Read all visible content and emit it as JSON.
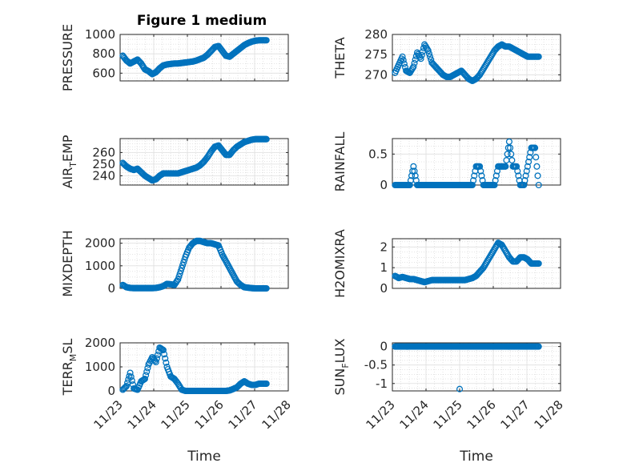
{
  "title": "Figure 1 medium",
  "colors": {
    "marker": "#0072BD",
    "axis": "#262626",
    "grid": "#dfdfdf"
  },
  "chart_data": [
    {
      "type": "scatter",
      "marker": "circle-open",
      "grid": true,
      "ylabel": "PRESSURE",
      "ylim": [
        520,
        1000
      ],
      "yticks": [
        600,
        800,
        1000
      ],
      "yticklabels": [
        "600",
        "800",
        "1000"
      ],
      "xlim": [
        0,
        5
      ],
      "xticks": [
        0,
        1,
        2,
        3,
        4,
        5
      ],
      "xticklabels": [
        "",
        "",
        "",
        "",
        "",
        ""
      ],
      "x_start": 0.08,
      "x_end": 4.35,
      "values": [
        780,
        730,
        700,
        720,
        740,
        700,
        640,
        620,
        590,
        610,
        650,
        680,
        690,
        695,
        700,
        700,
        705,
        710,
        715,
        720,
        730,
        745,
        760,
        790,
        830,
        870,
        880,
        830,
        780,
        770,
        800,
        830,
        860,
        890,
        910,
        925,
        935,
        940,
        940,
        940
      ]
    },
    {
      "type": "scatter",
      "marker": "circle-open",
      "grid": true,
      "ylabel": "THETA",
      "ylim": [
        268.5,
        280
      ],
      "yticks": [
        270,
        275,
        280
      ],
      "yticklabels": [
        "270",
        "275",
        "280"
      ],
      "xlim": [
        0,
        5
      ],
      "xticks": [
        0,
        1,
        2,
        3,
        4,
        5
      ],
      "xticklabels": [
        "",
        "",
        "",
        "",
        "",
        ""
      ],
      "x_start": 0.08,
      "x_end": 4.35,
      "values": [
        270.5,
        272.5,
        274.5,
        271,
        270.5,
        272,
        275.5,
        274,
        277.5,
        276,
        273,
        272,
        271,
        270,
        269.5,
        269.5,
        270,
        270.5,
        271,
        270,
        269,
        268.5,
        269,
        270,
        271.5,
        273,
        274.5,
        276,
        277,
        277.5,
        277,
        277,
        276.5,
        276,
        275.5,
        275,
        274.5,
        274.5,
        274.5,
        274.5
      ]
    },
    {
      "type": "scatter",
      "marker": "circle-open",
      "grid": true,
      "ylabel": "AIR_TEMP",
      "ylim": [
        232,
        272
      ],
      "yticks": [
        240,
        250,
        260
      ],
      "yticklabels": [
        "240",
        "250",
        "260"
      ],
      "xlim": [
        0,
        5
      ],
      "xticks": [
        0,
        1,
        2,
        3,
        4,
        5
      ],
      "xticklabels": [
        "",
        "",
        "",
        "",
        "",
        ""
      ],
      "x_start": 0.08,
      "x_end": 4.35,
      "values": [
        251,
        248,
        246,
        245,
        246,
        243,
        240,
        238,
        236,
        237,
        240,
        242,
        242,
        242,
        242,
        242,
        243,
        244,
        245,
        246,
        247,
        249,
        252,
        256,
        261,
        265,
        266,
        262,
        258,
        258,
        262,
        265,
        267,
        269,
        270,
        271,
        271.5,
        271.5,
        271.5,
        271.5
      ]
    },
    {
      "type": "scatter",
      "marker": "circle-open",
      "grid": true,
      "ylabel": "RAINFALL",
      "ylim": [
        0,
        0.75
      ],
      "yticks": [
        0,
        0.5
      ],
      "yticklabels": [
        "0",
        "0.5"
      ],
      "xlim": [
        0,
        5
      ],
      "xticks": [
        0,
        1,
        2,
        3,
        4,
        5
      ],
      "xticklabels": [
        "",
        "",
        "",
        "",
        "",
        ""
      ],
      "x_start": 0.08,
      "x_end": 4.35,
      "values": [
        0,
        0,
        0,
        0,
        0,
        0.3,
        0,
        0,
        0,
        0,
        0,
        0,
        0,
        0,
        0,
        0,
        0,
        0,
        0,
        0,
        0,
        0,
        0.3,
        0.3,
        0,
        0,
        0,
        0,
        0.3,
        0.3,
        0.3,
        0.7,
        0.3,
        0.3,
        0,
        0,
        0.3,
        0.6,
        0.6,
        0
      ]
    },
    {
      "type": "scatter",
      "marker": "circle-open",
      "grid": true,
      "ylabel": "MIXDEPTH",
      "ylim": [
        0,
        2200
      ],
      "yticks": [
        0,
        1000,
        2000
      ],
      "yticklabels": [
        "0",
        "1000",
        "2000"
      ],
      "xlim": [
        0,
        5
      ],
      "xticks": [
        0,
        1,
        2,
        3,
        4,
        5
      ],
      "xticklabels": [
        "",
        "",
        "",
        "",
        "",
        ""
      ],
      "x_start": 0.08,
      "x_end": 4.35,
      "values": [
        150,
        50,
        20,
        10,
        10,
        10,
        10,
        10,
        10,
        20,
        50,
        100,
        200,
        180,
        150,
        400,
        900,
        1400,
        1800,
        2000,
        2100,
        2100,
        2050,
        2000,
        2000,
        1950,
        1900,
        1500,
        1200,
        900,
        600,
        300,
        150,
        50,
        30,
        10,
        0,
        0,
        0,
        0
      ]
    },
    {
      "type": "scatter",
      "marker": "circle-open",
      "grid": true,
      "ylabel": "H2OMIXRA",
      "ylim": [
        0,
        2.4
      ],
      "yticks": [
        0,
        1,
        2
      ],
      "yticklabels": [
        "0",
        "1",
        "2"
      ],
      "xlim": [
        0,
        5
      ],
      "xticks": [
        0,
        1,
        2,
        3,
        4,
        5
      ],
      "xticklabels": [
        "",
        "",
        "",
        "",
        "",
        ""
      ],
      "x_start": 0.08,
      "x_end": 4.35,
      "values": [
        0.6,
        0.5,
        0.55,
        0.5,
        0.45,
        0.45,
        0.4,
        0.35,
        0.3,
        0.35,
        0.4,
        0.4,
        0.4,
        0.4,
        0.4,
        0.4,
        0.4,
        0.4,
        0.4,
        0.4,
        0.45,
        0.5,
        0.6,
        0.8,
        1.0,
        1.3,
        1.6,
        1.9,
        2.2,
        2.1,
        1.8,
        1.5,
        1.3,
        1.3,
        1.5,
        1.5,
        1.4,
        1.2,
        1.2,
        1.2
      ]
    },
    {
      "type": "scatter",
      "marker": "circle-open",
      "grid": true,
      "ylabel": "TERR_MSL",
      "ylim": [
        0,
        2000
      ],
      "yticks": [
        0,
        1000,
        2000
      ],
      "yticklabels": [
        "0",
        "1000",
        "2000"
      ],
      "xlim": [
        0,
        5
      ],
      "xticks": [
        0,
        1,
        2,
        3,
        4,
        5
      ],
      "xticklabels": [
        "11/23",
        "11/24",
        "11/25",
        "11/26",
        "11/27",
        "11/28"
      ],
      "xlabel": "Time",
      "x_start": 0.08,
      "x_end": 4.35,
      "values": [
        50,
        200,
        750,
        100,
        50,
        400,
        500,
        1100,
        1400,
        1200,
        1800,
        1700,
        1000,
        600,
        500,
        300,
        50,
        0,
        0,
        0,
        0,
        0,
        0,
        0,
        0,
        0,
        0,
        0,
        0,
        20,
        80,
        150,
        300,
        400,
        300,
        250,
        250,
        300,
        300,
        300
      ]
    },
    {
      "type": "scatter",
      "marker": "circle-open",
      "grid": true,
      "ylabel": "SUN_FLUX",
      "ylim": [
        -1.2,
        0.1
      ],
      "yticks": [
        -1,
        -0.5,
        0
      ],
      "yticklabels": [
        "-1",
        "-0.5",
        "0"
      ],
      "xlim": [
        0,
        5
      ],
      "xticks": [
        0,
        1,
        2,
        3,
        4,
        5
      ],
      "xticklabels": [
        "11/23",
        "11/24",
        "11/25",
        "11/26",
        "11/27",
        "11/28"
      ],
      "xlabel": "Time",
      "x_start": 0.08,
      "x_end": 4.35,
      "values": [
        0,
        0,
        0,
        0,
        0,
        0,
        0,
        0,
        0,
        0,
        0,
        0,
        0,
        0,
        0,
        0,
        0,
        0,
        0,
        0,
        0,
        0,
        0,
        0,
        0,
        0,
        0,
        0,
        0,
        0,
        0,
        0,
        0,
        0,
        0,
        0,
        0,
        0,
        0,
        0
      ],
      "extra_points": [
        {
          "x": 2.0,
          "y": -1.15
        }
      ]
    }
  ]
}
